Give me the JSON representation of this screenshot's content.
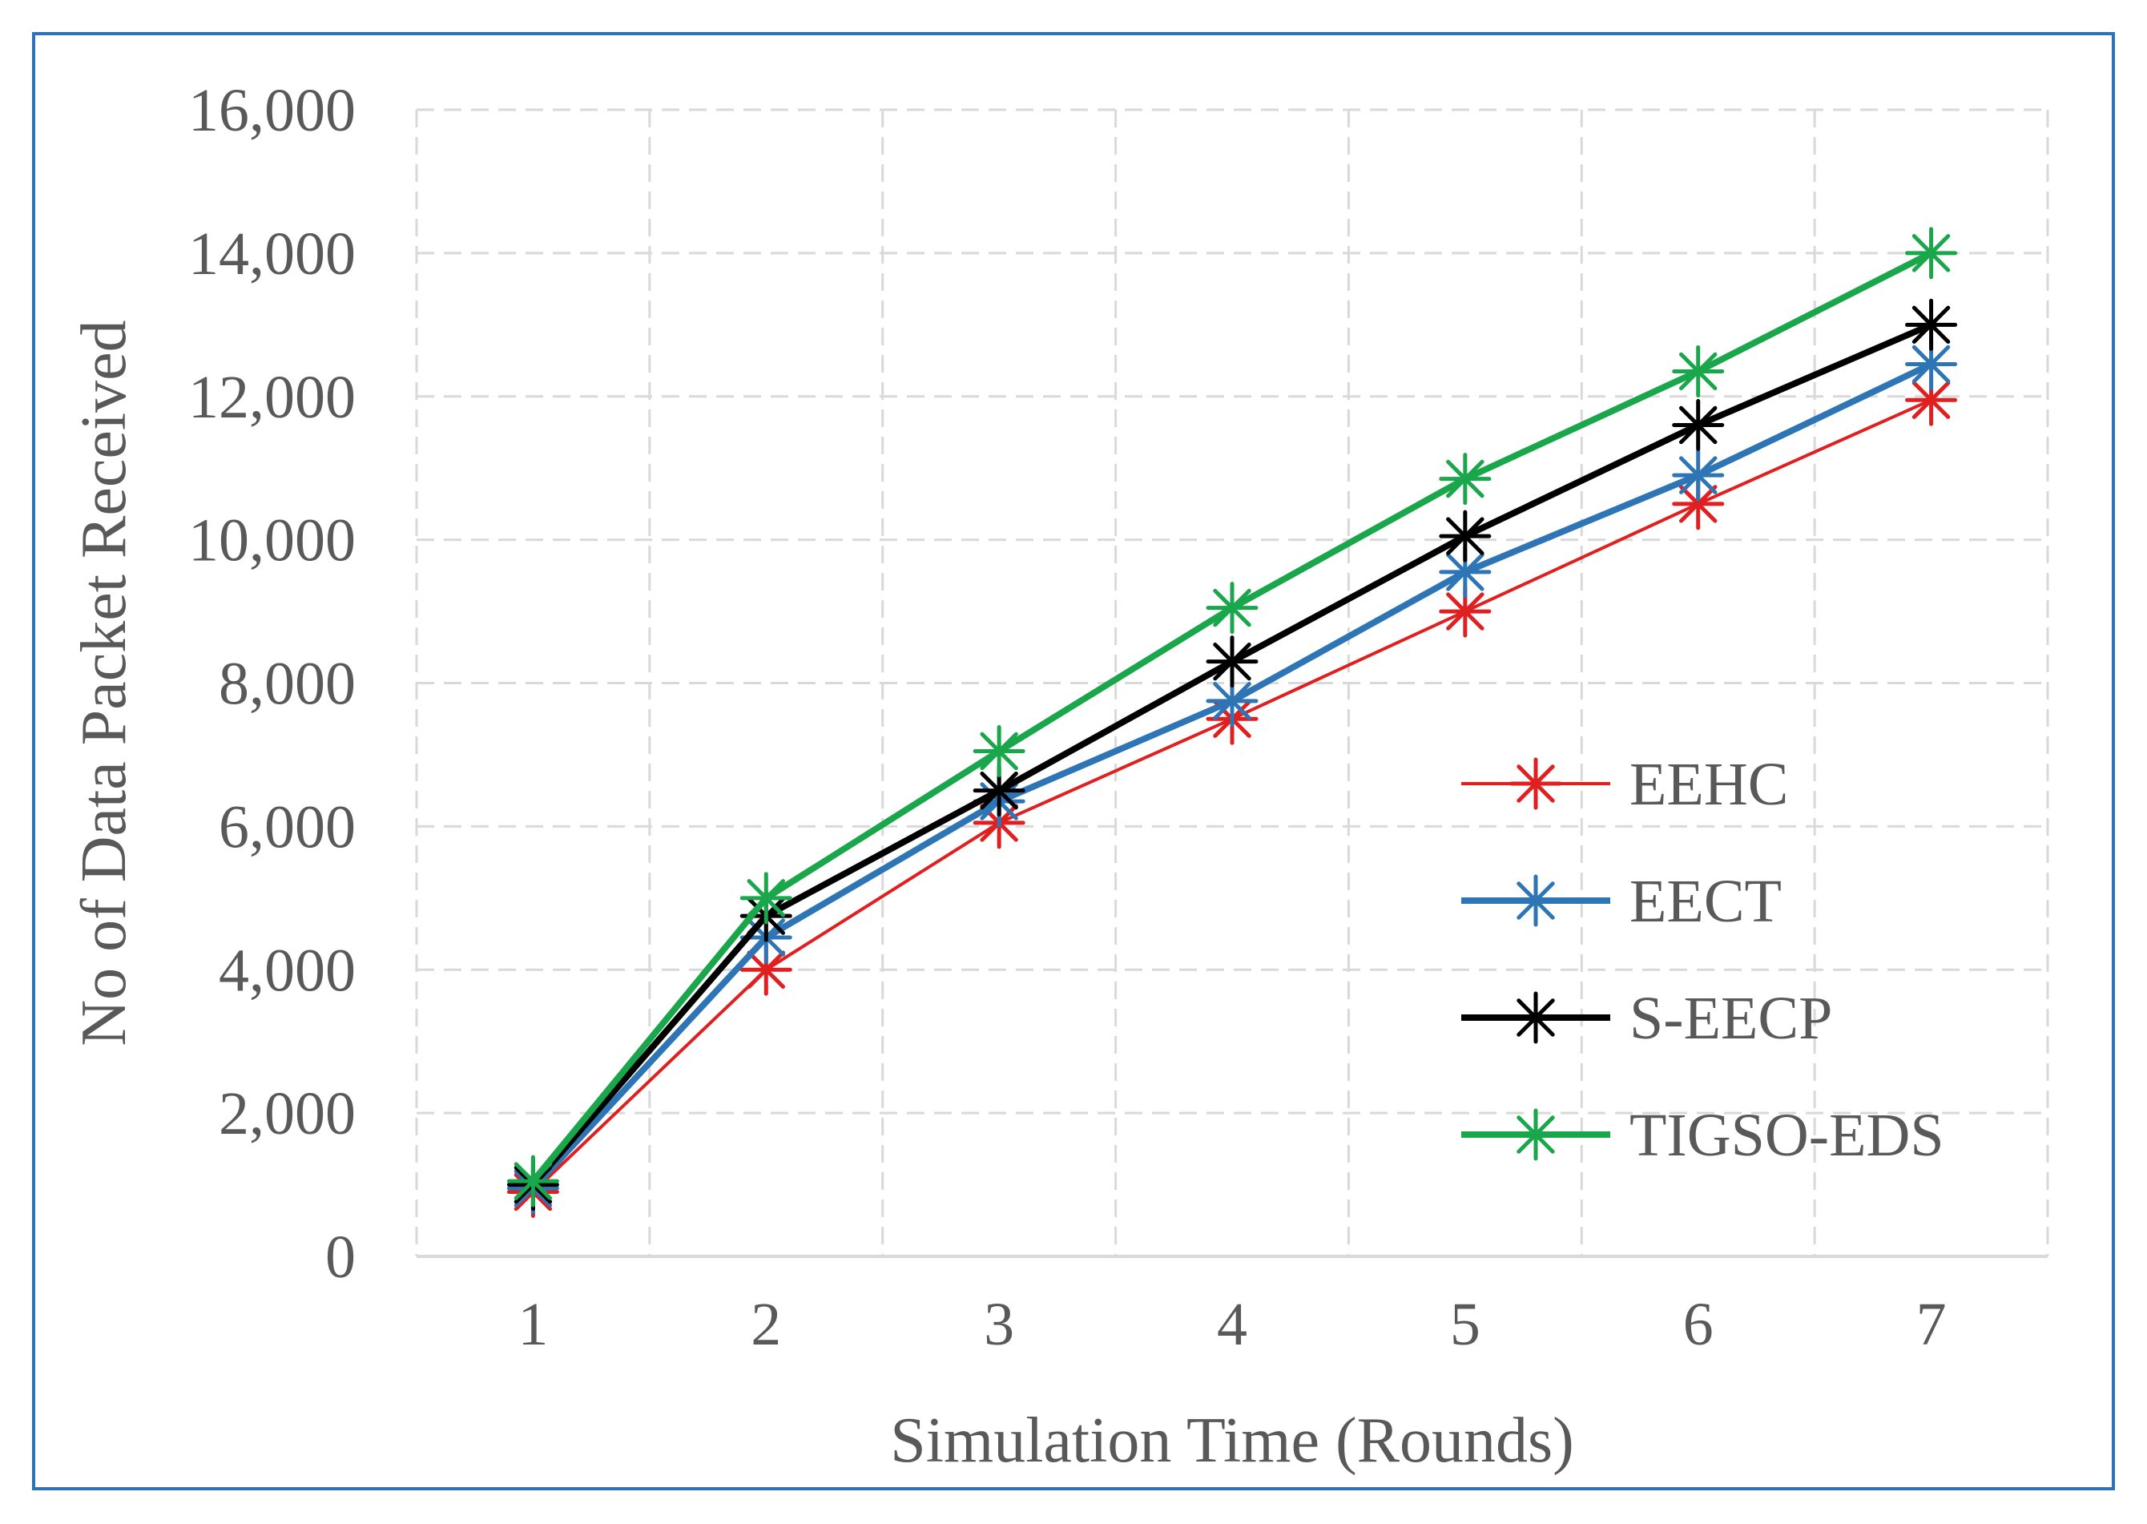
{
  "chart_data": {
    "type": "line",
    "title": "",
    "xlabel": "Simulation Time (Rounds)",
    "ylabel": "No of Data Packet Received",
    "x": [
      1,
      2,
      3,
      4,
      5,
      6,
      7
    ],
    "x_tick_labels": [
      "1",
      "2",
      "3",
      "4",
      "5",
      "6",
      "7"
    ],
    "ylim": [
      0,
      16000
    ],
    "y_ticks": [
      0,
      2000,
      4000,
      6000,
      8000,
      10000,
      12000,
      14000,
      16000
    ],
    "y_tick_labels": [
      "0",
      "2,000",
      "4,000",
      "6,000",
      "8,000",
      "10,000",
      "12,000",
      "14,000",
      "16,000"
    ],
    "grid": true,
    "legend_position": "right",
    "series": [
      {
        "name": "EEHC",
        "color": "#e02020",
        "values": [
          900,
          4000,
          6050,
          7500,
          9000,
          10500,
          11950
        ]
      },
      {
        "name": "EECT",
        "color": "#2e75b6",
        "values": [
          950,
          4450,
          6350,
          7750,
          9550,
          10900,
          12450
        ]
      },
      {
        "name": "S-EECP",
        "color": "#000000",
        "values": [
          1000,
          4750,
          6500,
          8300,
          10050,
          11600,
          13000
        ]
      },
      {
        "name": "TIGSO-EDS",
        "color": "#1aa64a",
        "values": [
          1050,
          5000,
          7050,
          9050,
          10850,
          12350,
          14000
        ]
      }
    ]
  }
}
